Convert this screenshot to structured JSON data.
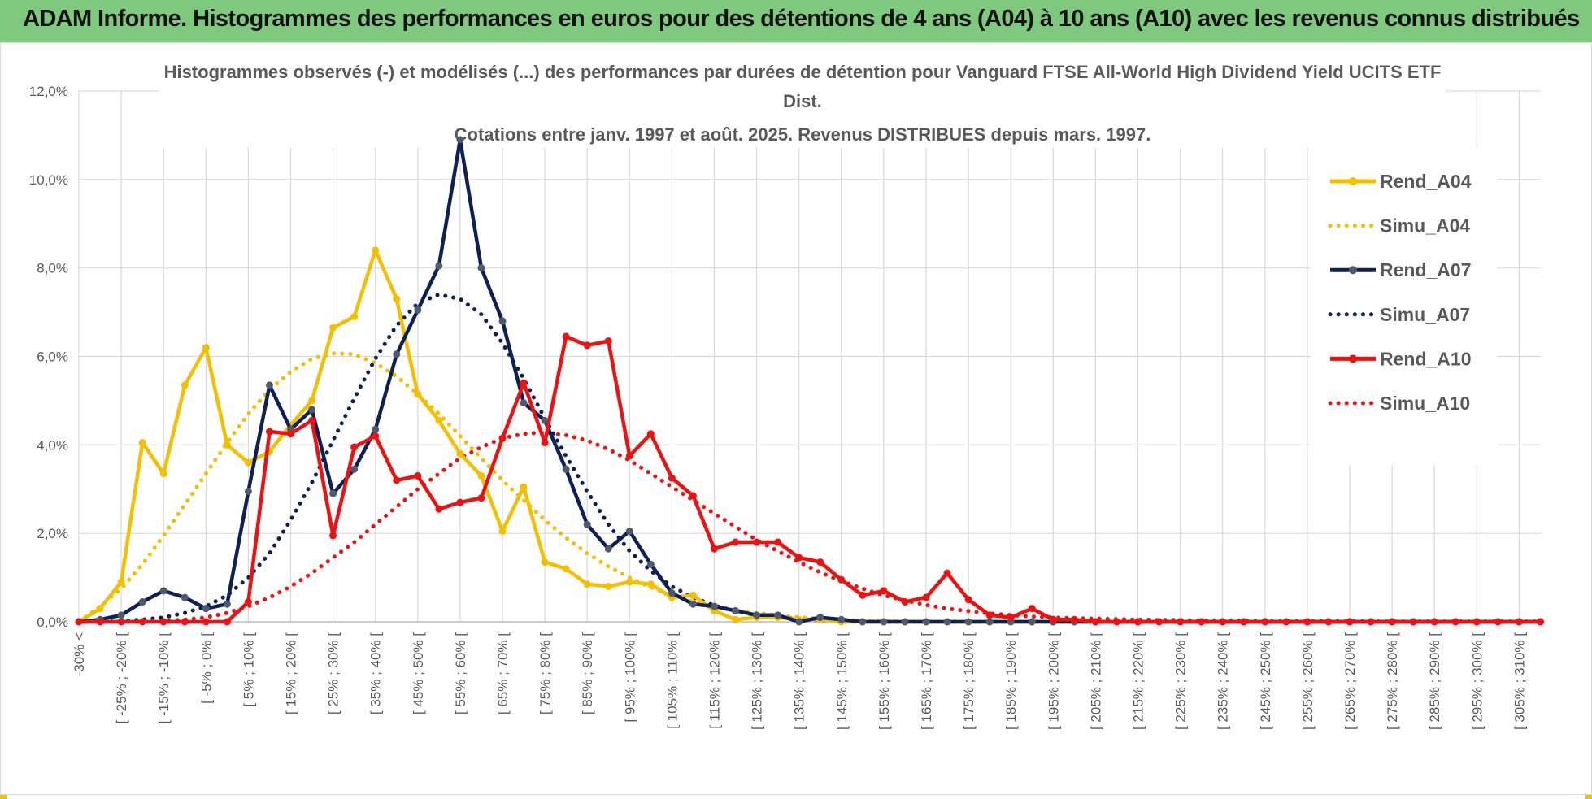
{
  "banner": {
    "title": "ADAM Informe. Histogrammes des performances en euros pour des détentions de 4 ans (A04) à 10 ans (A10) avec les revenus connus distribués",
    "color": "#7fc97f"
  },
  "chart_data": {
    "type": "line",
    "title_lines": [
      "Histogrammes observés (-) et modélisés (...)  des performances par durées de détention pour Vanguard FTSE All-World High Dividend Yield UCITS ETF",
      "Dist.",
      "Cotations entre janv. 1997 et août. 2025. Revenus DISTRIBUES depuis mars. 1997."
    ],
    "xlabel": "",
    "ylabel": "",
    "ylim": [
      0,
      12
    ],
    "yticks": [
      "0,0%",
      "2,0%",
      "4,0%",
      "6,0%",
      "8,0%",
      "10,0%",
      "12,0%"
    ],
    "grid": true,
    "legend_position": "right",
    "categories": [
      "-30% <",
      "[ -30% ; -25% [",
      "[ -25% ; -20% [",
      "[ -20% ; -15% [",
      "[ -15% ; -10% [",
      "[ -10% ; -5% [",
      "[ -5% ; 0% [",
      "[ 0% ; 5% [",
      "[ 5% ; 10% [",
      "[ 10% ; 15% [",
      "[ 15% ; 20% [",
      "[ 20% ; 25% [",
      "[ 25% ; 30% [",
      "[ 30% ; 35% [",
      "[ 35% ; 40% [",
      "[ 40% ; 45% [",
      "[ 45% ; 50% [",
      "[ 50% ; 55% [",
      "[ 55% ; 60% [",
      "[ 60% ; 65% [",
      "[ 65% ; 70% [",
      "[ 70% ; 75% [",
      "[ 75% ; 80% [",
      "[ 80% ; 85% [",
      "[ 85% ; 90% [",
      "[ 90% ; 95% [",
      "[ 95% ; 100% [",
      "[ 100% ; 105% [",
      "[ 105% ; 110% [",
      "[ 110% ; 115% [",
      "[ 115% ; 120% [",
      "[ 120% ; 125% [",
      "[ 125% ; 130% [",
      "[ 130% ; 135% [",
      "[ 135% ; 140% [",
      "[ 140% ; 145% [",
      "[ 145% ; 150% [",
      "[ 150% ; 155% [",
      "[ 155% ; 160% [",
      "[ 160% ; 165% [",
      "[ 165% ; 170% [",
      "[ 170% ; 175% [",
      "[ 175% ; 180% [",
      "[ 180% ; 185% [",
      "[ 185% ; 190% [",
      "[ 190% ; 195% [",
      "[ 195% ; 200% [",
      "[ 200% ; 205% [",
      "[ 205% ; 210% [",
      "[ 210% ; 215% [",
      "[ 215% ; 220% [",
      "[ 220% ; 225% [",
      "[ 225% ; 230% [",
      "[ 230% ; 235% [",
      "[ 235% ; 240% [",
      "[ 240% ; 245% [",
      "[ 245% ; 250% [",
      "[ 250% ; 255% [",
      "[ 255% ; 260% [",
      "[ 260% ; 265% [",
      "[ 265% ; 270% [",
      "[ 270% ; 275% [",
      "[ 275% ; 280% [",
      "[ 280% ; 285% [",
      "[ 285% ; 290% [",
      "[ 290% ; 295% [",
      "[ 295% ; 300% [",
      "[ 300% ; 305% [",
      "[ 305% ; 310% [",
      "[ 310% ; 315% ["
    ],
    "visible_tick_labels": [
      "-30% <",
      "[ -25% ; -20% [",
      "[ -15% ; -10% [",
      "[ -5% ; 0% [",
      "[ 5% ; 10% [",
      "[ 15% ; 20% [",
      "[ 25% ; 30% [",
      "[ 35% ; 40% [",
      "[ 45% ; 50% [",
      "[ 55% ; 60% [",
      "[ 65% ; 70% [",
      "[ 75% ; 80% [",
      "[ 85% ; 90% [",
      "[ 95% ; 100% [",
      "[ 105% ; 110% [",
      "[ 115% ; 120% [",
      "[ 125% ; 130% [",
      "[ 135% ; 140% [",
      "[ 145% ; 150% [",
      "[ 155% ; 160% [",
      "[ 165% ; 170% [",
      "[ 175% ; 180% [",
      "[ 185% ; 190% [",
      "[ 195% ; 200% [",
      "[ 205% ; 210% [",
      "[ 215% ; 220% [",
      "[ 225% ; 230% [",
      "[ 235% ; 240% [",
      "[ 245% ; 250% [",
      "[ 255% ; 260% [",
      "[ 265% ; 270% [",
      "[ 275% ; 280% [",
      "[ 285% ; 290% [",
      "[ 295% ; 300% [",
      "[ 305% ; 310% ["
    ],
    "series": [
      {
        "name": "Rend_A04",
        "style": "solid",
        "color": "#f5bf00",
        "marker": true,
        "values": [
          0,
          0.3,
          0.9,
          4.05,
          3.35,
          5.35,
          6.2,
          4.0,
          3.6,
          3.85,
          4.45,
          5.0,
          6.65,
          6.9,
          8.4,
          7.3,
          5.15,
          4.55,
          3.8,
          3.3,
          2.05,
          3.05,
          1.35,
          1.2,
          0.85,
          0.8,
          0.9,
          0.85,
          0.55,
          0.6,
          0.25,
          0.05,
          0.1,
          0.1,
          0.05,
          0.05,
          0,
          0,
          0,
          0,
          0,
          0,
          0,
          0,
          0,
          0,
          0,
          0,
          0,
          0,
          0,
          0,
          0,
          0,
          0,
          0,
          0,
          0,
          0,
          0,
          0,
          0,
          0,
          0,
          0,
          0,
          0,
          0,
          0,
          0
        ]
      },
      {
        "name": "Simu_A04",
        "style": "dotted",
        "color": "#f5bf00",
        "values": [
          0,
          0.35,
          0.75,
          1.3,
          1.95,
          2.65,
          3.35,
          4.05,
          4.7,
          5.25,
          5.65,
          5.95,
          6.07,
          6.05,
          5.85,
          5.55,
          5.15,
          4.7,
          4.2,
          3.7,
          3.2,
          2.75,
          2.3,
          1.9,
          1.55,
          1.25,
          1.0,
          0.78,
          0.6,
          0.46,
          0.35,
          0.26,
          0.2,
          0.15,
          0.1,
          0.07,
          0.05,
          0.03,
          0.02,
          0.01,
          0,
          0,
          0,
          0,
          0,
          0,
          0,
          0,
          0,
          0,
          0,
          0,
          0,
          0,
          0,
          0,
          0,
          0,
          0,
          0,
          0,
          0,
          0,
          0,
          0,
          0,
          0,
          0,
          0,
          0
        ]
      },
      {
        "name": "Rend_A07",
        "style": "solid",
        "color": "#0d2156",
        "marker": true,
        "marker_color": "#4f5a6e",
        "values": [
          0,
          0.05,
          0.15,
          0.45,
          0.7,
          0.55,
          0.3,
          0.4,
          2.95,
          5.35,
          4.35,
          4.8,
          2.9,
          3.45,
          4.35,
          6.05,
          7.05,
          8.05,
          10.9,
          8.0,
          6.8,
          4.95,
          4.55,
          3.45,
          2.2,
          1.65,
          2.05,
          1.3,
          0.65,
          0.4,
          0.35,
          0.25,
          0.15,
          0.15,
          0,
          0.1,
          0.05,
          0,
          0,
          0,
          0,
          0,
          0,
          0,
          0,
          0,
          0,
          0,
          0,
          0,
          0,
          0,
          0,
          0,
          0,
          0,
          0,
          0,
          0,
          0,
          0,
          0,
          0,
          0,
          0,
          0,
          0,
          0,
          0,
          0
        ]
      },
      {
        "name": "Simu_A07",
        "style": "dotted",
        "color": "#0d2156",
        "values": [
          0,
          0,
          0.02,
          0.05,
          0.1,
          0.2,
          0.35,
          0.6,
          1.0,
          1.55,
          2.3,
          3.15,
          4.1,
          5.05,
          5.95,
          6.7,
          7.2,
          7.4,
          7.3,
          6.95,
          6.3,
          5.5,
          4.6,
          3.75,
          2.95,
          2.2,
          1.6,
          1.15,
          0.8,
          0.55,
          0.37,
          0.24,
          0.15,
          0.1,
          0.06,
          0.04,
          0.02,
          0.01,
          0,
          0,
          0,
          0,
          0,
          0,
          0,
          0,
          0,
          0,
          0,
          0,
          0,
          0,
          0,
          0,
          0,
          0,
          0,
          0,
          0,
          0,
          0,
          0,
          0,
          0,
          0,
          0,
          0,
          0,
          0,
          0
        ]
      },
      {
        "name": "Rend_A10",
        "style": "solid",
        "color": "#ee1111",
        "marker": true,
        "values": [
          0,
          0,
          0,
          0,
          0,
          0,
          0,
          0,
          0.45,
          4.3,
          4.25,
          4.55,
          1.95,
          3.95,
          4.2,
          3.2,
          3.3,
          2.55,
          2.7,
          2.8,
          4.15,
          5.4,
          4.05,
          6.45,
          6.25,
          6.35,
          3.75,
          4.25,
          3.25,
          2.85,
          1.65,
          1.8,
          1.8,
          1.8,
          1.45,
          1.35,
          0.95,
          0.6,
          0.7,
          0.45,
          0.55,
          1.1,
          0.5,
          0.15,
          0.1,
          0.3,
          0.05,
          0.05,
          0,
          0,
          0,
          0,
          0,
          0,
          0,
          0,
          0,
          0,
          0,
          0,
          0,
          0,
          0,
          0,
          0,
          0,
          0,
          0,
          0,
          0
        ]
      },
      {
        "name": "Simu_A10",
        "style": "dotted",
        "color": "#ee1111",
        "values": [
          0,
          0,
          0,
          0,
          0.02,
          0.05,
          0.1,
          0.2,
          0.35,
          0.55,
          0.8,
          1.1,
          1.45,
          1.8,
          2.2,
          2.6,
          3.0,
          3.35,
          3.7,
          3.95,
          4.15,
          4.25,
          4.28,
          4.22,
          4.1,
          3.9,
          3.65,
          3.35,
          3.05,
          2.75,
          2.45,
          2.15,
          1.85,
          1.6,
          1.35,
          1.12,
          0.92,
          0.75,
          0.6,
          0.48,
          0.38,
          0.3,
          0.24,
          0.19,
          0.15,
          0.12,
          0.1,
          0.08,
          0.07,
          0.06,
          0.05,
          0.04,
          0.04,
          0.03,
          0.03,
          0.03,
          0.02,
          0.02,
          0.02,
          0.02,
          0.02,
          0.01,
          0.01,
          0.01,
          0.01,
          0.01,
          0.01,
          0.01,
          0.01,
          0.01
        ]
      }
    ]
  }
}
